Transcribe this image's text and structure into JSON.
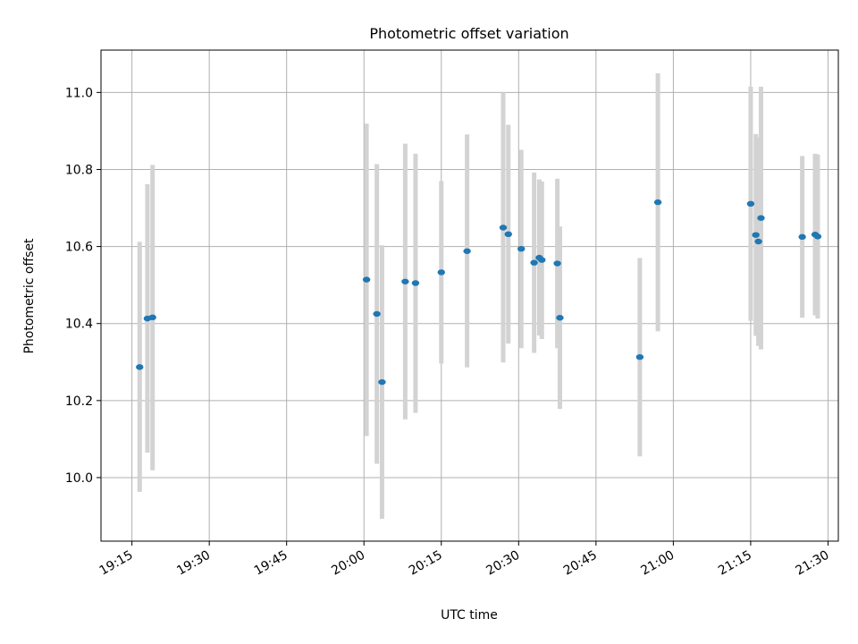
{
  "chart_data": {
    "type": "scatter",
    "title": "Photometric offset variation",
    "xlabel": "UTC time",
    "ylabel": "Photometric offset",
    "xlim": [
      "19:09",
      "21:32"
    ],
    "ylim": [
      9.835,
      11.11
    ],
    "x_ticks": [
      "19:15",
      "19:30",
      "19:45",
      "20:00",
      "20:15",
      "20:30",
      "20:45",
      "21:00",
      "21:15",
      "21:30"
    ],
    "y_ticks": [
      10.0,
      10.2,
      10.4,
      10.6,
      10.8,
      11.0
    ],
    "y_tick_labels": [
      "10.0",
      "10.2",
      "10.4",
      "10.6",
      "10.8",
      "11.0"
    ],
    "grid": true,
    "point_color": "#1f77b4",
    "errorbar_color": "#d3d3d3",
    "points": [
      {
        "t": "19:16:30",
        "y": 10.287,
        "ylo": 9.963,
        "yhi": 10.612
      },
      {
        "t": "19:18:00",
        "y": 10.413,
        "ylo": 10.065,
        "yhi": 10.762
      },
      {
        "t": "19:19:00",
        "y": 10.416,
        "ylo": 10.019,
        "yhi": 10.812
      },
      {
        "t": "20:00:30",
        "y": 10.514,
        "ylo": 10.108,
        "yhi": 10.919
      },
      {
        "t": "20:02:30",
        "y": 10.425,
        "ylo": 10.036,
        "yhi": 10.814
      },
      {
        "t": "20:03:30",
        "y": 10.248,
        "ylo": 9.893,
        "yhi": 10.603
      },
      {
        "t": "20:08:00",
        "y": 10.509,
        "ylo": 10.151,
        "yhi": 10.867
      },
      {
        "t": "20:10:00",
        "y": 10.505,
        "ylo": 10.168,
        "yhi": 10.841
      },
      {
        "t": "20:15:00",
        "y": 10.533,
        "ylo": 10.296,
        "yhi": 10.77
      },
      {
        "t": "20:20:00",
        "y": 10.588,
        "ylo": 10.286,
        "yhi": 10.891
      },
      {
        "t": "20:27:00",
        "y": 10.649,
        "ylo": 10.299,
        "yhi": 11.0
      },
      {
        "t": "20:28:00",
        "y": 10.632,
        "ylo": 10.348,
        "yhi": 10.916
      },
      {
        "t": "20:30:30",
        "y": 10.594,
        "ylo": 10.336,
        "yhi": 10.851
      },
      {
        "t": "20:33:00",
        "y": 10.558,
        "ylo": 10.324,
        "yhi": 10.792
      },
      {
        "t": "20:34:00",
        "y": 10.571,
        "ylo": 10.369,
        "yhi": 10.774
      },
      {
        "t": "20:34:30",
        "y": 10.565,
        "ylo": 10.36,
        "yhi": 10.769
      },
      {
        "t": "20:37:30",
        "y": 10.556,
        "ylo": 10.336,
        "yhi": 10.776
      },
      {
        "t": "20:38:00",
        "y": 10.415,
        "ylo": 10.178,
        "yhi": 10.652
      },
      {
        "t": "20:53:30",
        "y": 10.313,
        "ylo": 10.055,
        "yhi": 10.57
      },
      {
        "t": "20:57:00",
        "y": 10.715,
        "ylo": 10.38,
        "yhi": 11.05
      },
      {
        "t": "21:15:00",
        "y": 10.711,
        "ylo": 10.407,
        "yhi": 11.015
      },
      {
        "t": "21:16:00",
        "y": 10.63,
        "ylo": 10.368,
        "yhi": 10.892
      },
      {
        "t": "21:16:30",
        "y": 10.613,
        "ylo": 10.342,
        "yhi": 10.884
      },
      {
        "t": "21:17:00",
        "y": 10.674,
        "ylo": 10.333,
        "yhi": 11.015
      },
      {
        "t": "21:25:00",
        "y": 10.625,
        "ylo": 10.415,
        "yhi": 10.835
      },
      {
        "t": "21:27:30",
        "y": 10.631,
        "ylo": 10.421,
        "yhi": 10.841
      },
      {
        "t": "21:28:00",
        "y": 10.626,
        "ylo": 10.413,
        "yhi": 10.839
      }
    ]
  }
}
